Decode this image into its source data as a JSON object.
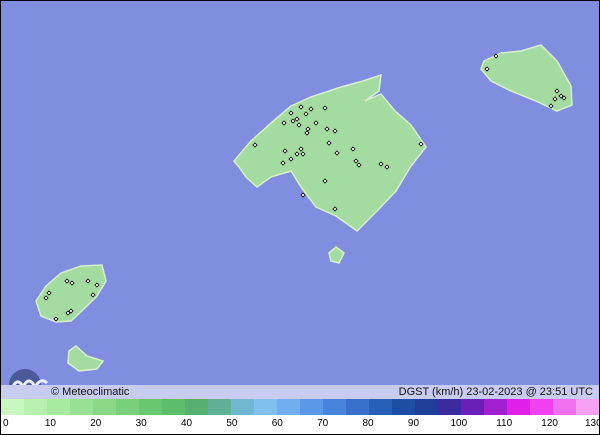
{
  "map": {
    "ocean_color": "#7f8ede",
    "land_color": "#a3dba0",
    "station_marker": "diamond"
  },
  "credit": "© Meteoclimatic",
  "logo_text": "Meteoclimatic",
  "info": "DGST (km/h)  23-02-2023 @ 23:51 UTC",
  "scale": {
    "ticks": [
      "0",
      "10",
      "20",
      "30",
      "40",
      "50",
      "60",
      "70",
      "80",
      "90",
      "100",
      "110",
      "120",
      "130"
    ],
    "colors": [
      "#c8f8c0",
      "#b8f0b0",
      "#a8eaa0",
      "#98e094",
      "#88d888",
      "#78d07c",
      "#68c872",
      "#5cbe6a",
      "#58b070",
      "#60b098",
      "#70b8d0",
      "#80c0f0",
      "#70aef0",
      "#5c98e8",
      "#4884dc",
      "#3870cc",
      "#2860b8",
      "#1c4ea4",
      "#203e98",
      "#3a2aa0",
      "#6a20b8",
      "#a020d0",
      "#e020e8",
      "#f040f0",
      "#f070f0",
      "#f8a0f4"
    ]
  }
}
